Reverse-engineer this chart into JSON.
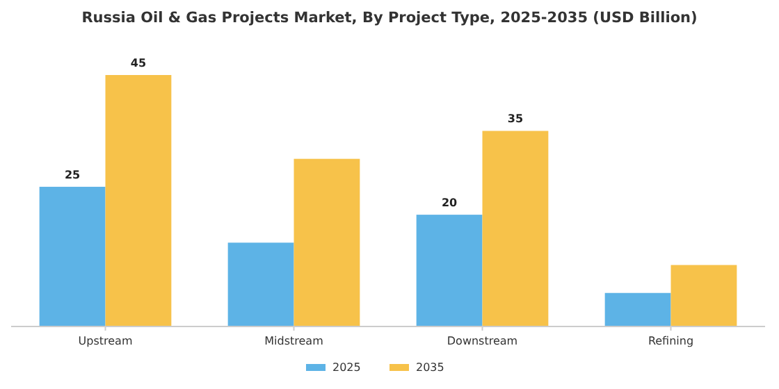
{
  "chart_data": {
    "type": "bar",
    "title": "Russia Oil & Gas Projects Market, By Project Type, 2025-2035 (USD Billion)",
    "categories": [
      "Upstream",
      "Midstream",
      "Downstream",
      "Refining"
    ],
    "tick_labels": "x",
    "legend": "bottom",
    "grid": false,
    "series": [
      {
        "name": "2025",
        "color": "#5db3e6",
        "values": [
          25,
          15,
          20,
          6
        ],
        "value_labels": [
          "25",
          null,
          "20",
          null
        ]
      },
      {
        "name": "2035",
        "color": "#f7c24a",
        "values": [
          45,
          30,
          35,
          11
        ],
        "value_labels": [
          "45",
          null,
          "35",
          null
        ]
      }
    ]
  }
}
